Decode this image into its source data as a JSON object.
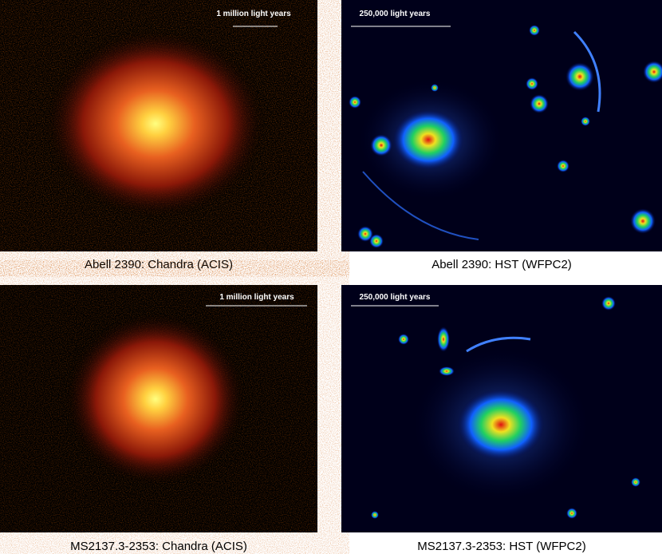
{
  "panels": [
    {
      "scale_label": "1 million light years",
      "caption": "Abell 2390: Chandra (ACIS)"
    },
    {
      "scale_label": "250,000 light years",
      "caption": "Abell 2390: HST (WFPC2)"
    },
    {
      "scale_label": "1 million light years",
      "caption": "MS2137.3-2353: Chandra (ACIS)"
    },
    {
      "scale_label": "250,000 light years",
      "caption": "MS2137.3-2353: HST (WFPC2)"
    }
  ]
}
